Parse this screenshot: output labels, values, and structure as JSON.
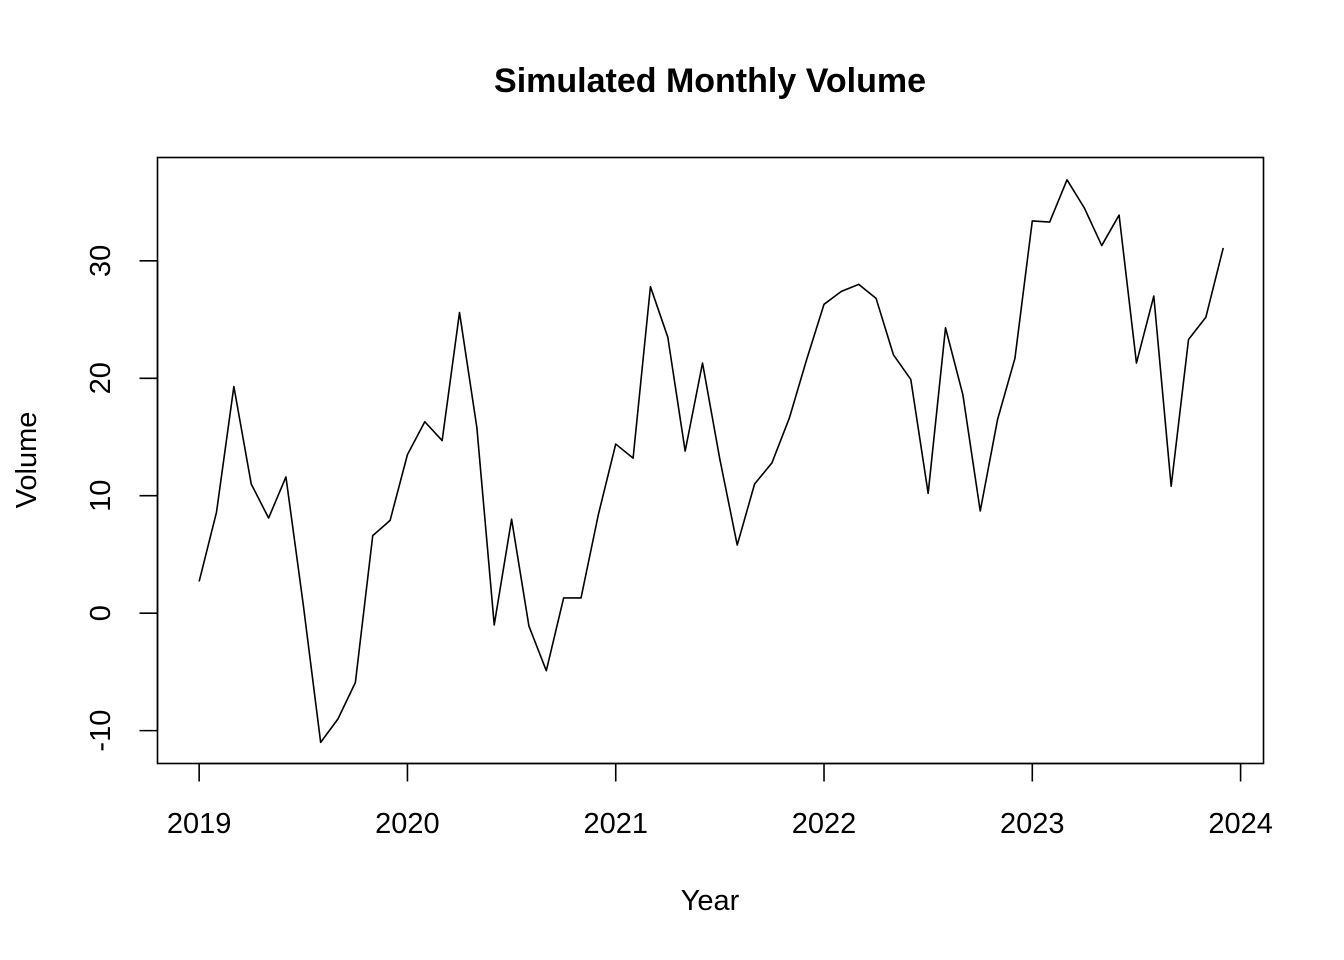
{
  "chart_data": {
    "type": "line",
    "title": "Simulated Monthly Volume",
    "xlabel": "Year",
    "ylabel": "Volume",
    "x_start": 2019.0,
    "x_step": 0.0833333,
    "xlim": [
      2018.8,
      2024.11
    ],
    "ylim": [
      -12.8,
      38.8
    ],
    "x_ticks": [
      2019,
      2020,
      2021,
      2022,
      2023,
      2024
    ],
    "x_tick_labels": [
      "2019",
      "2020",
      "2021",
      "2022",
      "2023",
      "2024"
    ],
    "y_ticks": [
      -10,
      0,
      10,
      20,
      30
    ],
    "y_tick_labels": [
      "-10",
      "0",
      "10",
      "20",
      "30"
    ],
    "grid": false,
    "series": [
      {
        "color": "#000000",
        "values": [
          2.7,
          8.6,
          19.3,
          11.0,
          8.1,
          11.6,
          0.7,
          -11.0,
          -9.0,
          -5.9,
          6.6,
          7.9,
          13.5,
          16.3,
          14.7,
          25.6,
          15.8,
          -1.0,
          8.0,
          -1.1,
          -4.9,
          1.3,
          1.3,
          8.4,
          14.4,
          13.2,
          27.8,
          23.5,
          13.8,
          21.3,
          13.1,
          5.8,
          11.0,
          12.8,
          16.6,
          21.6,
          26.3,
          27.4,
          28.0,
          26.8,
          22.0,
          19.9,
          10.2,
          24.3,
          18.6,
          8.7,
          16.5,
          21.7,
          33.4,
          33.3,
          36.9,
          34.5,
          31.3,
          33.9,
          21.3,
          27.0,
          10.8,
          23.3,
          25.2,
          31.1
        ]
      }
    ]
  }
}
